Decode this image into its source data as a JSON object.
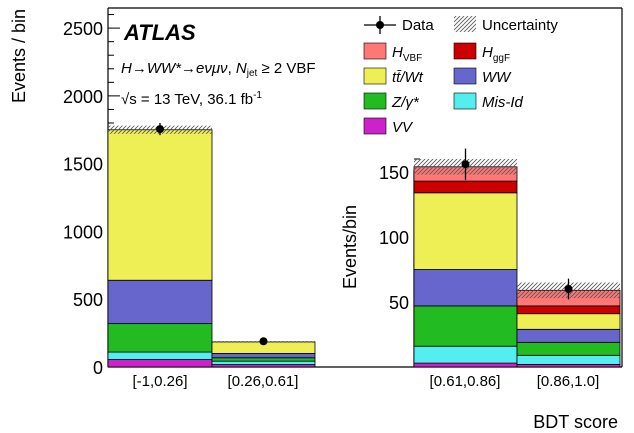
{
  "chart_data": {
    "type": "bar",
    "stacked": true,
    "experiment": "ATLAS",
    "process_line": {
      "a": "H",
      "b": "→",
      "c": "WW*",
      "d": "→",
      "e": "eνμν",
      "f": ", ",
      "g": "N",
      "h": "jet",
      "i": " ≥ 2 VBF"
    },
    "energy_line": {
      "root": "√s",
      "text": " = 13 TeV, 36.1 fb",
      "sup": "-1"
    },
    "ylabel": "Events / bin",
    "xlabel": "BDT score",
    "ylim": [
      0,
      2600
    ],
    "yticks": [
      "0",
      "500",
      "1000",
      "1500",
      "2000",
      "2500"
    ],
    "categories": [
      "[-1,0.26]",
      "[0.26,0.61]",
      "[0.61,0.86]",
      "[0.86,1.0]"
    ],
    "series": [
      {
        "name": "VV",
        "color": "#cc22cc",
        "values": [
          55,
          18,
          3,
          2
        ]
      },
      {
        "name": "Mis-Id",
        "color": "#55eeee",
        "values": [
          55,
          25,
          13,
          7
        ]
      },
      {
        "name": "Z/γ*",
        "color": "#22bb22",
        "values": [
          210,
          25,
          31,
          10
        ]
      },
      {
        "name": "WW",
        "color": "#6666cc",
        "values": [
          320,
          32,
          28,
          10
        ]
      },
      {
        "name": "tt̄/Wt",
        "color": "#eeee55",
        "values": [
          1110,
          85,
          59,
          12
        ]
      },
      {
        "name": "HggF",
        "color": "#cc0000",
        "values": [
          0,
          0,
          9,
          6
        ]
      },
      {
        "name": "HVBF",
        "color": "#ff7777",
        "values": [
          0,
          0,
          11,
          12
        ]
      }
    ],
    "data_points": [
      {
        "value": 1755,
        "err": 45
      },
      {
        "value": 190,
        "err": 14
      },
      {
        "value": 156,
        "err": 12
      },
      {
        "value": 60,
        "err": 8
      }
    ],
    "uncertainty_halfwidth": [
      30,
      6,
      6,
      6
    ],
    "inset": {
      "ylabel": "Events/bin",
      "ylim": [
        0,
        170
      ],
      "yticks": [
        "50",
        "100",
        "150"
      ]
    },
    "legend": {
      "placement": "top-right",
      "data_label": "Data",
      "uncertainty_label": "Uncertainty",
      "items": [
        {
          "main": "H",
          "sub": "VBF",
          "color": "#ff7777"
        },
        {
          "main": "H",
          "sub": "ggF",
          "color": "#cc0000"
        },
        {
          "main": "tt̄/Wt",
          "sub": "",
          "color": "#eeee55"
        },
        {
          "main": "WW",
          "sub": "",
          "color": "#6666cc"
        },
        {
          "main": "Z/γ*",
          "sub": "",
          "color": "#22bb22"
        },
        {
          "main": "Mis-Id",
          "sub": "",
          "color": "#55eeee"
        },
        {
          "main": "VV",
          "sub": "",
          "color": "#cc22cc"
        }
      ]
    }
  }
}
